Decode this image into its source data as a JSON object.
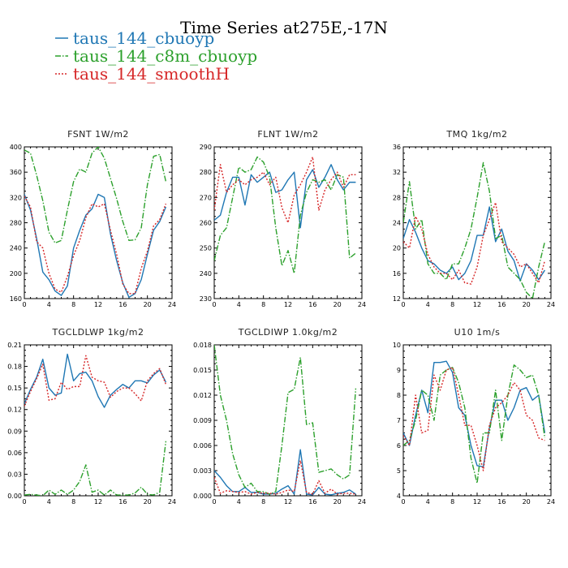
{
  "figure": {
    "title": "Time Series at275E,-17N"
  },
  "legend": [
    {
      "name": "taus_144_cbuoyp",
      "color": "#1f77b4",
      "dash": "solid"
    },
    {
      "name": "taus_144_c8m_cbuoyp",
      "color": "#2ca02c",
      "dash": "dashdot"
    },
    {
      "name": "taus_144_smoothH",
      "color": "#d62728",
      "dash": "dot"
    }
  ],
  "chart_data": [
    {
      "type": "line",
      "title": "FSNT   1W/m2",
      "x": [
        0,
        1,
        2,
        3,
        4,
        5,
        6,
        7,
        8,
        9,
        10,
        11,
        12,
        13,
        14,
        15,
        16,
        17,
        18,
        19,
        20,
        21,
        22,
        23
      ],
      "xlim": [
        0,
        24
      ],
      "xticks": [
        "0",
        "4",
        "8",
        "12",
        "16",
        "20",
        "24"
      ],
      "ylim": [
        160,
        400
      ],
      "yticks": [
        "160",
        "200",
        "240",
        "280",
        "320",
        "360",
        "400"
      ],
      "series": [
        {
          "values": [
            325,
            300,
            255,
            202,
            190,
            172,
            165,
            180,
            240,
            268,
            292,
            302,
            325,
            320,
            262,
            220,
            185,
            162,
            168,
            190,
            230,
            268,
            282,
            305
          ]
        },
        {
          "values": [
            395,
            390,
            355,
            315,
            265,
            248,
            252,
            300,
            345,
            365,
            360,
            390,
            400,
            382,
            350,
            318,
            282,
            252,
            253,
            272,
            340,
            385,
            388,
            345
          ]
        },
        {
          "values": [
            322,
            305,
            250,
            240,
            200,
            175,
            170,
            195,
            228,
            252,
            288,
            310,
            305,
            310,
            268,
            230,
            183,
            168,
            168,
            208,
            235,
            275,
            285,
            310
          ]
        }
      ]
    },
    {
      "type": "line",
      "title": "FLNT   1W/m2",
      "x": [
        0,
        1,
        2,
        3,
        4,
        5,
        6,
        7,
        8,
        9,
        10,
        11,
        12,
        13,
        14,
        15,
        16,
        17,
        18,
        19,
        20,
        21,
        22,
        23
      ],
      "xlim": [
        0,
        24
      ],
      "xticks": [
        "0",
        "4",
        "8",
        "12",
        "16",
        "20",
        "24"
      ],
      "ylim": [
        230,
        290
      ],
      "yticks": [
        "230",
        "240",
        "250",
        "260",
        "270",
        "280",
        "290"
      ],
      "series": [
        {
          "values": [
            261,
            263,
            272,
            278,
            278,
            267,
            279,
            276,
            278,
            280,
            272,
            273,
            277,
            280,
            258,
            277,
            281,
            274,
            278,
            283,
            277,
            273,
            276,
            276
          ]
        },
        {
          "values": [
            245,
            255,
            258,
            270,
            282,
            280,
            281,
            286,
            284,
            278,
            258,
            243,
            249,
            240,
            263,
            272,
            277,
            276,
            277,
            273,
            279,
            278,
            246,
            248
          ]
        },
        {
          "values": [
            265,
            283,
            272,
            275,
            277,
            275,
            277,
            278,
            280,
            275,
            278,
            266,
            260,
            271,
            275,
            280,
            286,
            265,
            273,
            277,
            280,
            274,
            279,
            279
          ]
        }
      ]
    },
    {
      "type": "line",
      "title": "TMQ   1kg/m2",
      "x": [
        0,
        1,
        2,
        3,
        4,
        5,
        6,
        7,
        8,
        9,
        10,
        11,
        12,
        13,
        14,
        15,
        16,
        17,
        18,
        19,
        20,
        21,
        22,
        23
      ],
      "xlim": [
        0,
        24
      ],
      "xticks": [
        "0",
        "4",
        "8",
        "12",
        "16",
        "20",
        "24"
      ],
      "ylim": [
        12,
        36
      ],
      "yticks": [
        "12",
        "16",
        "20",
        "24",
        "28",
        "32",
        "36"
      ],
      "series": [
        {
          "values": [
            21.5,
            24.5,
            22.5,
            20,
            18,
            17.5,
            16.5,
            16,
            17,
            15,
            16,
            18,
            22,
            22,
            26.5,
            21,
            23,
            19.5,
            18,
            14.8,
            17.5,
            16.5,
            15,
            16.5
          ]
        },
        {
          "values": [
            24,
            30.5,
            23,
            24.5,
            17.5,
            16,
            16,
            15,
            17.5,
            17.5,
            20,
            23,
            28,
            33.5,
            29,
            21.5,
            22,
            17,
            16,
            15,
            13,
            12,
            17,
            21
          ]
        },
        {
          "values": [
            21,
            20,
            25,
            23,
            19,
            17,
            16,
            16,
            15,
            16.5,
            14.5,
            14.3,
            17,
            22,
            24.5,
            27.2,
            21,
            20,
            19,
            17,
            17.5,
            16,
            14.5,
            18
          ]
        }
      ]
    },
    {
      "type": "line",
      "title": "TGCLDLWP   1kg/m2",
      "x": [
        0,
        1,
        2,
        3,
        4,
        5,
        6,
        7,
        8,
        9,
        10,
        11,
        12,
        13,
        14,
        15,
        16,
        17,
        18,
        19,
        20,
        21,
        22,
        23
      ],
      "xlim": [
        0,
        24
      ],
      "xticks": [
        "0",
        "4",
        "8",
        "12",
        "16",
        "20",
        "24"
      ],
      "ylim": [
        0,
        0.21
      ],
      "yticks": [
        "0.00",
        "0.03",
        "0.06",
        "0.09",
        "0.12",
        "0.15",
        "0.18",
        "0.21"
      ],
      "series": [
        {
          "values": [
            0.128,
            0.148,
            0.165,
            0.19,
            0.15,
            0.14,
            0.143,
            0.197,
            0.16,
            0.17,
            0.172,
            0.16,
            0.138,
            0.123,
            0.14,
            0.148,
            0.155,
            0.15,
            0.16,
            0.16,
            0.157,
            0.168,
            0.175,
            0.158
          ]
        },
        {
          "values": [
            0.001,
            0.002,
            0.001,
            0.0,
            0.008,
            0.002,
            0.008,
            0.002,
            0.008,
            0.02,
            0.043,
            0.005,
            0.008,
            0.001,
            0.008,
            0.001,
            0.001,
            0.001,
            0.004,
            0.012,
            0.002,
            0.001,
            0.005,
            0.076
          ]
        },
        {
          "values": [
            0.125,
            0.145,
            0.163,
            0.183,
            0.133,
            0.135,
            0.158,
            0.148,
            0.152,
            0.152,
            0.195,
            0.165,
            0.16,
            0.158,
            0.137,
            0.145,
            0.15,
            0.15,
            0.142,
            0.132,
            0.16,
            0.17,
            0.177,
            0.155
          ]
        }
      ]
    },
    {
      "type": "line",
      "title": "TGCLDIWP   1.0kg/m2",
      "x": [
        0,
        1,
        2,
        3,
        4,
        5,
        6,
        7,
        8,
        9,
        10,
        11,
        12,
        13,
        14,
        15,
        16,
        17,
        18,
        19,
        20,
        21,
        22,
        23
      ],
      "xlim": [
        0,
        24
      ],
      "xticks": [
        "0",
        "4",
        "8",
        "12",
        "16",
        "20",
        "24"
      ],
      "ylim": [
        0,
        0.018
      ],
      "yticks": [
        "0.000",
        "0.003",
        "0.006",
        "0.009",
        "0.012",
        "0.015",
        "0.018"
      ],
      "series": [
        {
          "values": [
            0.003,
            0.0022,
            0.0012,
            0.0005,
            0.0005,
            0.001,
            0.0004,
            0.0004,
            0.0002,
            0.0002,
            0.0003,
            0.0008,
            0.0012,
            0.0002,
            0.0055,
            0.0002,
            0.0001,
            0.001,
            0.0002,
            0.0001,
            0.0003,
            0.0004,
            0.0007,
            0.0002
          ]
        },
        {
          "values": [
            0.018,
            0.012,
            0.009,
            0.005,
            0.0025,
            0.001,
            0.0015,
            0.0005,
            0.0005,
            0.0002,
            0.0005,
            0.006,
            0.0123,
            0.0127,
            0.0165,
            0.0085,
            0.0087,
            0.0028,
            0.003,
            0.0032,
            0.0025,
            0.002,
            0.0025,
            0.0128
          ]
        },
        {
          "values": [
            0.0022,
            0.0003,
            0.0006,
            0.0005,
            0.0004,
            0.0005,
            0.0002,
            0.0004,
            0.0003,
            0.0003,
            0.0002,
            0.0004,
            0.0007,
            0.0005,
            0.0042,
            0.0004,
            0.0002,
            0.0018,
            0.0003,
            0.0008,
            0.0002,
            0.0003,
            0.0003,
            0.0002
          ]
        }
      ]
    },
    {
      "type": "line",
      "title": "U10   1m/s",
      "x": [
        0,
        1,
        2,
        3,
        4,
        5,
        6,
        7,
        8,
        9,
        10,
        11,
        12,
        13,
        14,
        15,
        16,
        17,
        18,
        19,
        20,
        21,
        22,
        23
      ],
      "xlim": [
        0,
        24
      ],
      "xticks": [
        "0",
        "4",
        "8",
        "12",
        "16",
        "20",
        "24"
      ],
      "ylim": [
        4,
        10
      ],
      "yticks": [
        "4",
        "5",
        "6",
        "7",
        "8",
        "9",
        "10"
      ],
      "series": [
        {
          "values": [
            6.5,
            6.0,
            7.2,
            8.2,
            7.3,
            9.3,
            9.3,
            9.35,
            8.9,
            7.5,
            7.2,
            6.0,
            5.2,
            5.15,
            6.7,
            7.8,
            7.8,
            7.0,
            7.5,
            8.2,
            8.3,
            7.8,
            8.0,
            6.5
          ]
        },
        {
          "values": [
            6.0,
            6.2,
            7.0,
            8.2,
            8.0,
            7.0,
            8.8,
            9.0,
            9.1,
            8.5,
            7.5,
            5.5,
            4.5,
            6.5,
            6.5,
            8.2,
            6.2,
            8.0,
            9.2,
            9.0,
            8.7,
            8.8,
            8.0,
            6.3
          ]
        },
        {
          "values": [
            6.4,
            6.0,
            8.0,
            6.5,
            6.6,
            8.8,
            8.2,
            9.0,
            9.1,
            8.0,
            6.8,
            6.8,
            6.0,
            5.0,
            6.8,
            7.5,
            7.7,
            8.0,
            8.5,
            8.2,
            7.2,
            7.0,
            6.3,
            6.2
          ]
        }
      ]
    }
  ]
}
